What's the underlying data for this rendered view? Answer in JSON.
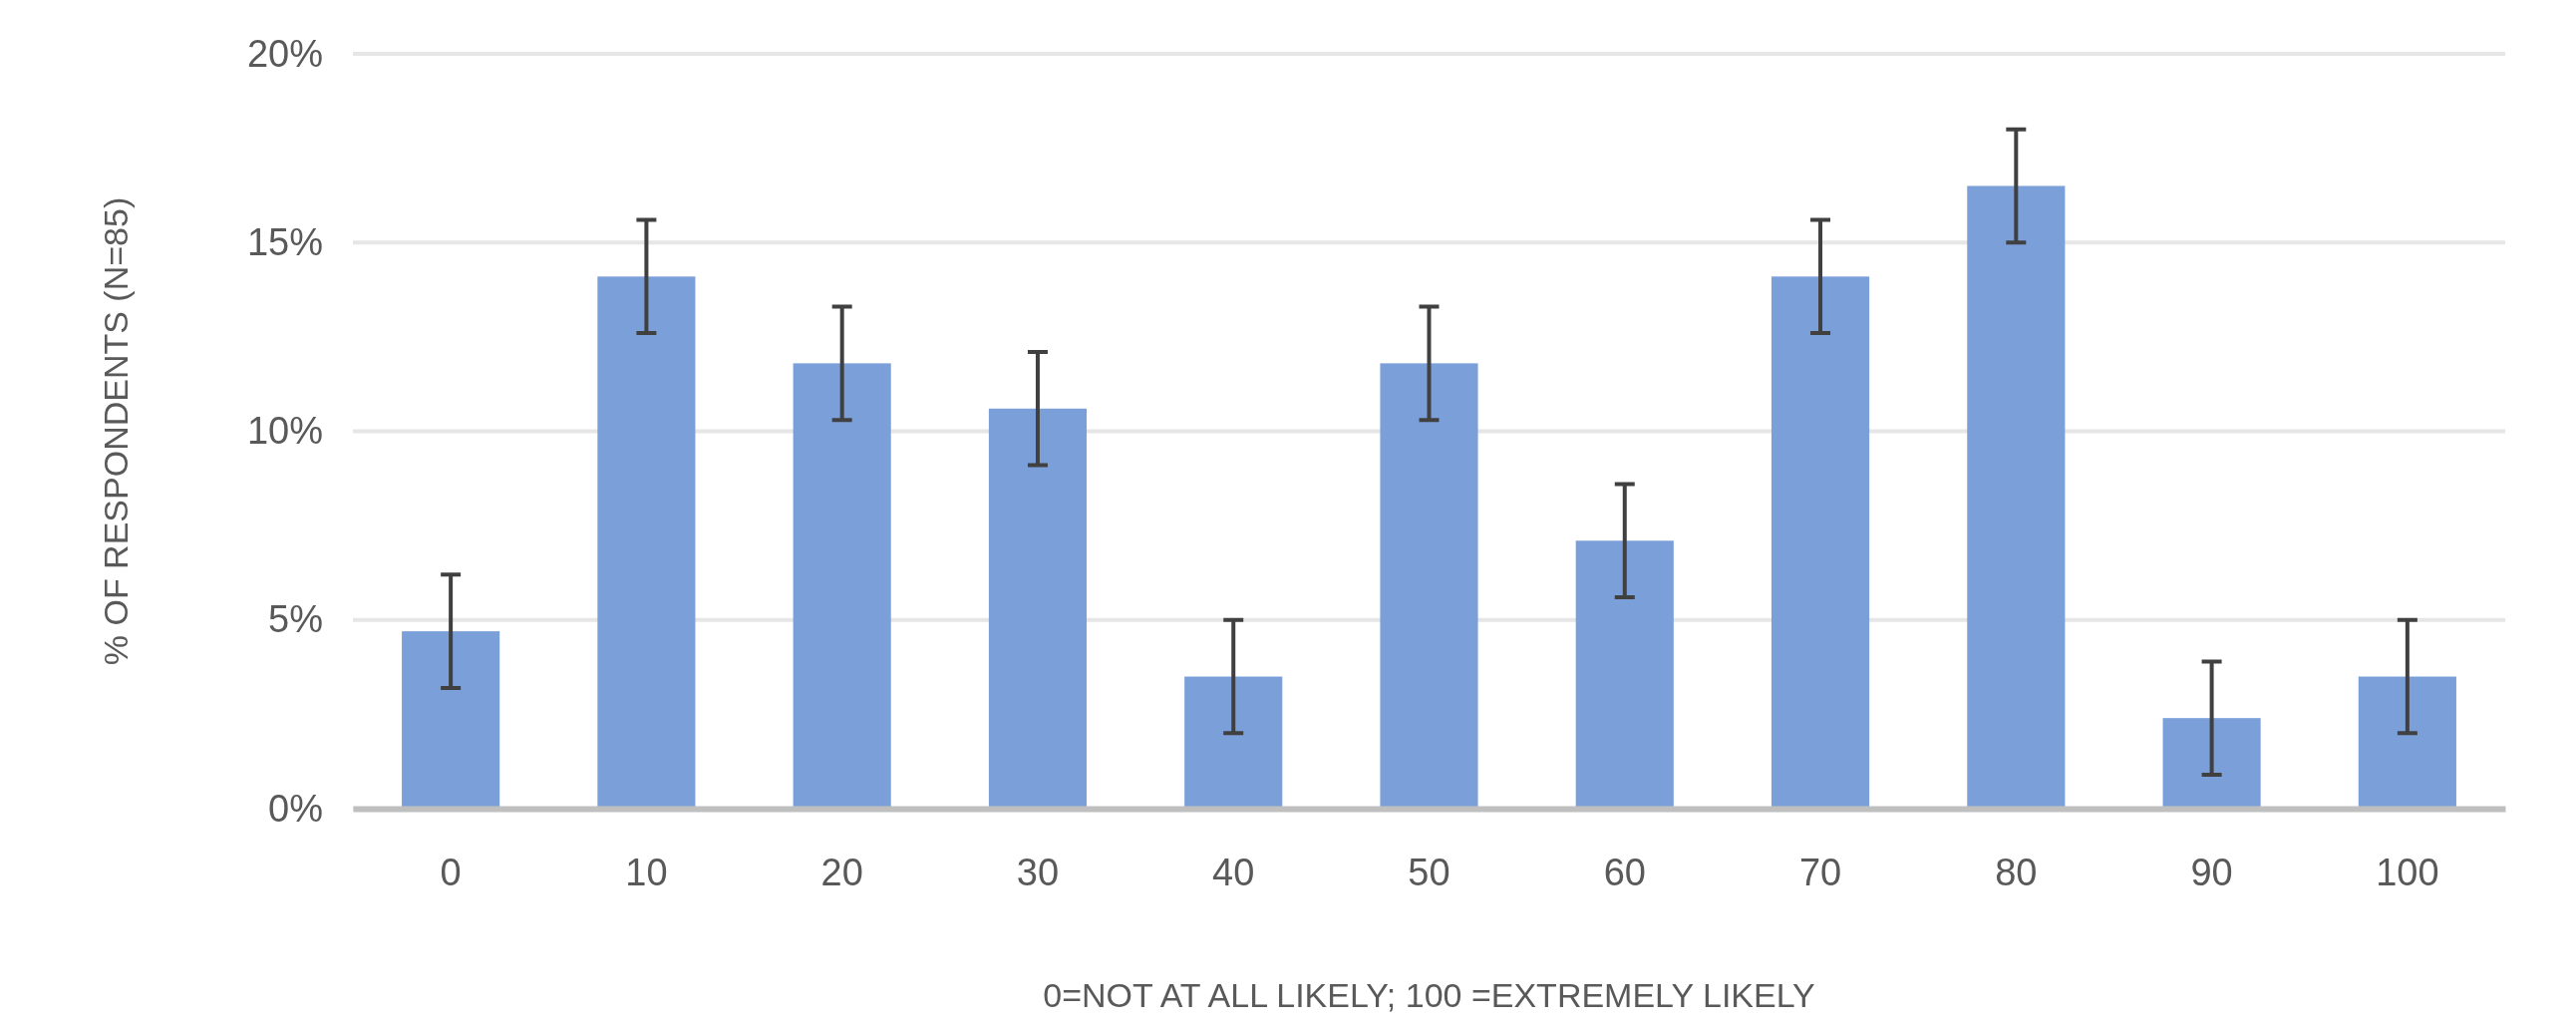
{
  "chart_data": {
    "type": "bar",
    "xlabel": "0=NOT AT ALL LIKELY; 100 =EXTREMELY LIKELY",
    "ylabel": "% OF RESPONDENTS (N=85)",
    "categories": [
      "0",
      "10",
      "20",
      "30",
      "40",
      "50",
      "60",
      "70",
      "80",
      "90",
      "100"
    ],
    "values": [
      4.7,
      14.1,
      11.8,
      10.6,
      3.5,
      11.8,
      7.1,
      14.1,
      16.5,
      2.4,
      3.5
    ],
    "errors": [
      1.5,
      1.5,
      1.5,
      1.5,
      1.5,
      1.5,
      1.5,
      1.5,
      1.5,
      1.5,
      1.5
    ],
    "color": "#7ba0d9",
    "ylim": [
      0,
      20
    ],
    "yticks": [
      {
        "value": 0,
        "label": "0%"
      },
      {
        "value": 5,
        "label": "5%"
      },
      {
        "value": 10,
        "label": "10%"
      },
      {
        "value": 15,
        "label": "15%"
      },
      {
        "value": 20,
        "label": "20%"
      }
    ],
    "grid": "y"
  }
}
